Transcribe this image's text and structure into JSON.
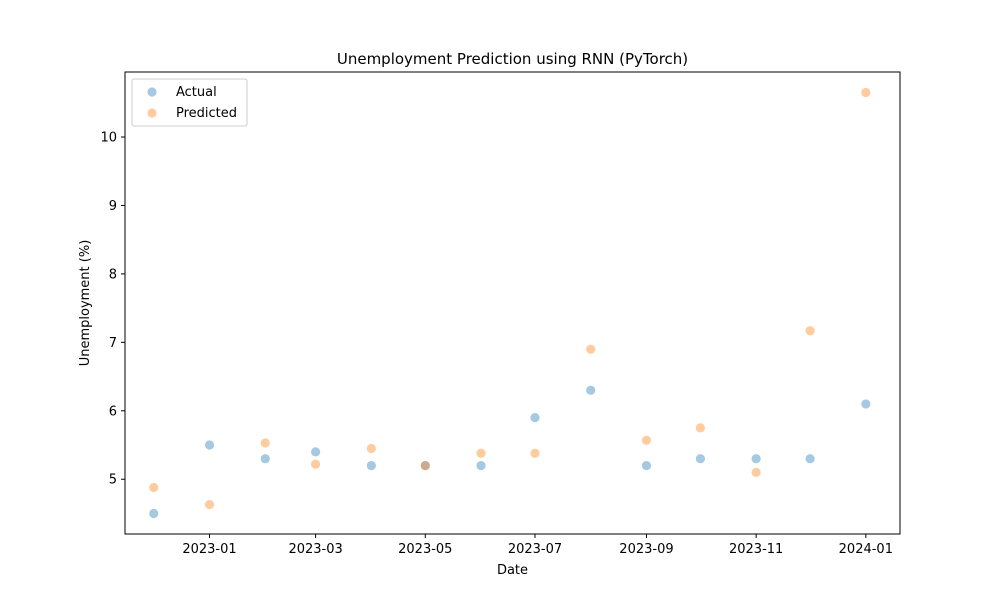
{
  "chart_data": {
    "type": "scatter",
    "title": "Unemployment Prediction using RNN (PyTorch)",
    "xlabel": "Date",
    "ylabel": "Unemployment (%)",
    "x_type": "date",
    "xlim": [
      "2022-11-15",
      "2024-01-20"
    ],
    "ylim": [
      4.2,
      10.95
    ],
    "x_ticks": [
      "2023-01-01",
      "2023-03-01",
      "2023-05-01",
      "2023-07-01",
      "2023-09-01",
      "2023-11-01",
      "2024-01-01"
    ],
    "x_tick_labels": [
      "2023-01",
      "2023-03",
      "2023-05",
      "2023-07",
      "2023-09",
      "2023-11",
      "2024-01"
    ],
    "y_ticks": [
      5,
      6,
      7,
      8,
      9,
      10
    ],
    "y_tick_labels": [
      "5",
      "6",
      "7",
      "8",
      "9",
      "10"
    ],
    "grid": false,
    "legend_position": "top-left",
    "x": [
      "2022-12-01",
      "2023-01-01",
      "2023-02-01",
      "2023-03-01",
      "2023-04-01",
      "2023-05-01",
      "2023-06-01",
      "2023-07-01",
      "2023-08-01",
      "2023-09-01",
      "2023-10-01",
      "2023-11-01",
      "2023-12-01",
      "2024-01-01"
    ],
    "series": [
      {
        "name": "Actual",
        "color": "#1f77b4",
        "values": [
          4.5,
          5.5,
          5.3,
          5.4,
          5.2,
          5.2,
          5.2,
          5.9,
          6.3,
          5.2,
          5.3,
          5.3,
          5.3,
          6.1
        ]
      },
      {
        "name": "Predicted",
        "color": "#ff7f0e",
        "values": [
          4.88,
          4.63,
          5.53,
          5.22,
          5.45,
          5.2,
          5.38,
          5.38,
          6.9,
          5.57,
          5.75,
          5.1,
          7.17,
          10.65
        ]
      }
    ]
  }
}
